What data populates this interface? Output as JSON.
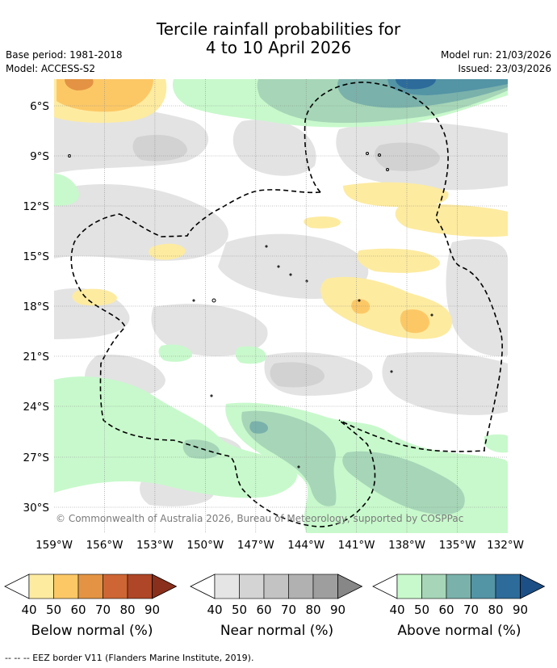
{
  "title": {
    "line1": "Tercile rainfall probabilities for",
    "line2": "4 to 10 April 2026"
  },
  "meta": {
    "base_period": "Base period: 1981-2018",
    "model": "Model: ACCESS-S2",
    "model_run": "Model run: 21/03/2026",
    "issued": "Issued: 23/03/2026"
  },
  "map": {
    "lat_labels": [
      "6°S",
      "9°S",
      "12°S",
      "15°S",
      "18°S",
      "21°S",
      "24°S",
      "27°S",
      "30°S"
    ],
    "lon_labels": [
      "159°W",
      "156°W",
      "153°W",
      "150°W",
      "147°W",
      "144°W",
      "141°W",
      "138°W",
      "135°W",
      "132°W"
    ],
    "copyright": "© Commonwealth of Australia 2026, Bureau of Meteorology, supported by COSPPac"
  },
  "colorbars": {
    "below": {
      "label": "Below normal (%)",
      "ticks": [
        "40",
        "50",
        "60",
        "70",
        "80",
        "90"
      ],
      "colors": [
        "#ffffff",
        "#fdeba0",
        "#fcc866",
        "#e39343",
        "#cd6634",
        "#ae4627",
        "#8a2f1b"
      ]
    },
    "near": {
      "label": "Near normal (%)",
      "ticks": [
        "40",
        "50",
        "60",
        "70",
        "80",
        "90"
      ],
      "colors": [
        "#ffffff",
        "#e5e5e5",
        "#d4d4d4",
        "#c3c3c3",
        "#b1b1b1",
        "#9e9e9e",
        "#878787"
      ]
    },
    "above": {
      "label": "Above normal (%)",
      "ticks": [
        "40",
        "50",
        "60",
        "70",
        "80",
        "90"
      ],
      "colors": [
        "#ffffff",
        "#c8f9cc",
        "#a6d6b7",
        "#7ab1ab",
        "#5394a5",
        "#2d6b9a",
        "#1b4f85"
      ]
    }
  },
  "footer": "--  --  -- EEZ border V11 (Flanders Marine Institute, 2019)."
}
